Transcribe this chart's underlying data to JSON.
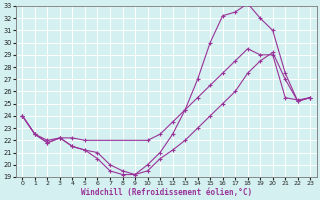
{
  "xlabel": "Windchill (Refroidissement éolien,°C)",
  "bg_color": "#d4f0f0",
  "line_color": "#993399",
  "grid_color": "#ffffff",
  "xlim": [
    -0.5,
    23.5
  ],
  "ylim": [
    19,
    33
  ],
  "xticks": [
    0,
    1,
    2,
    3,
    4,
    5,
    6,
    7,
    8,
    9,
    10,
    11,
    12,
    13,
    14,
    15,
    16,
    17,
    18,
    19,
    20,
    21,
    22,
    23
  ],
  "yticks": [
    19,
    20,
    21,
    22,
    23,
    24,
    25,
    26,
    27,
    28,
    29,
    30,
    31,
    32,
    33
  ],
  "line1_x": [
    0,
    1,
    2,
    3,
    4,
    5,
    10,
    11,
    12,
    13,
    14,
    15,
    16,
    17,
    18,
    19,
    20,
    21,
    22,
    23
  ],
  "line1_y": [
    24.0,
    22.5,
    22.0,
    22.2,
    22.2,
    22.0,
    22.0,
    22.5,
    23.5,
    24.5,
    25.5,
    26.5,
    27.5,
    28.5,
    29.5,
    29.0,
    29.0,
    25.5,
    25.3,
    25.5
  ],
  "line2_x": [
    0,
    1,
    2,
    3,
    4,
    5,
    6,
    7,
    8,
    9,
    10,
    11,
    12,
    13,
    14,
    15,
    16,
    17,
    18,
    19,
    20,
    21,
    22,
    23
  ],
  "line2_y": [
    24.0,
    22.5,
    21.8,
    22.2,
    21.5,
    21.2,
    21.0,
    20.0,
    19.5,
    19.2,
    20.0,
    21.0,
    22.5,
    24.5,
    27.0,
    30.0,
    32.2,
    32.5,
    33.2,
    32.0,
    31.0,
    27.5,
    25.2,
    25.5
  ],
  "line3_x": [
    0,
    1,
    2,
    3,
    4,
    5,
    6,
    7,
    8,
    9,
    10,
    11,
    12,
    13,
    14,
    15,
    16,
    17,
    18,
    19,
    20,
    21,
    22,
    23
  ],
  "line3_y": [
    24.0,
    22.5,
    21.8,
    22.2,
    21.5,
    21.2,
    20.5,
    19.5,
    19.2,
    19.2,
    19.5,
    20.5,
    21.2,
    22.0,
    23.0,
    24.0,
    25.0,
    26.0,
    27.5,
    28.5,
    29.2,
    27.0,
    25.2,
    25.5
  ]
}
